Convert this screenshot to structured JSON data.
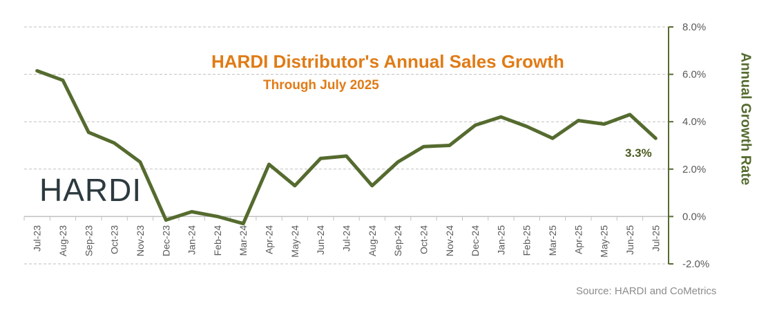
{
  "colors": {
    "line": "#556b2f",
    "title": "#e07b16",
    "axis": "#556b2f",
    "grid": "#bfbfbf",
    "tick_text": "#595959"
  },
  "chart_data": {
    "type": "line",
    "title": "HARDI Distributor's Annual Sales Growth",
    "subtitle": "Through July 2025",
    "ylabel": "Annual Growth Rate",
    "xlabel": "",
    "ylim": [
      -2.0,
      8.0
    ],
    "yticks": [
      "8.0%",
      "6.0%",
      "4.0%",
      "2.0%",
      "0.0%",
      "-2.0%"
    ],
    "y_axis_side": "right",
    "grid": true,
    "categories": [
      "Jul-23",
      "Aug-23",
      "Sep-23",
      "Oct-23",
      "Nov-23",
      "Dec-23",
      "Jan-24",
      "Feb-24",
      "Mar-24",
      "Apr-24",
      "May-24",
      "Jun-24",
      "Jul-24",
      "Aug-24",
      "Sep-24",
      "Oct-24",
      "Nov-24",
      "Dec-24",
      "Jan-25",
      "Feb-25",
      "Mar-25",
      "Apr-25",
      "May-25",
      "Jun-25",
      "Jul-25"
    ],
    "series": [
      {
        "values": [
          6.15,
          5.75,
          3.55,
          3.1,
          2.3,
          -0.15,
          0.2,
          0.0,
          -0.3,
          2.2,
          1.3,
          2.45,
          2.55,
          1.3,
          2.3,
          2.95,
          3.0,
          3.85,
          4.2,
          3.8,
          3.3,
          4.05,
          3.9,
          4.3,
          3.3
        ]
      }
    ],
    "annotation": "3.3%",
    "logo_text": "HARDI",
    "source": "Source: HARDI and CoMetrics"
  }
}
